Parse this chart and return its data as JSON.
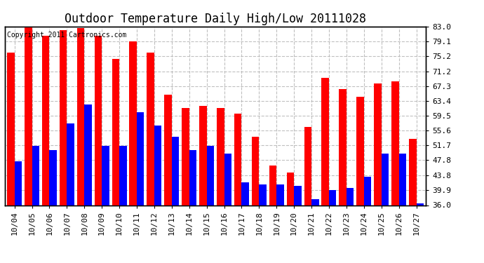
{
  "title": "Outdoor Temperature Daily High/Low 20111028",
  "copyright": "Copyright 2011 Cartronics.com",
  "dates": [
    "10/04",
    "10/05",
    "10/06",
    "10/07",
    "10/08",
    "10/09",
    "10/10",
    "10/11",
    "10/12",
    "10/13",
    "10/14",
    "10/15",
    "10/16",
    "10/17",
    "10/18",
    "10/19",
    "10/20",
    "10/21",
    "10/22",
    "10/23",
    "10/24",
    "10/25",
    "10/26",
    "10/27"
  ],
  "highs": [
    76.0,
    83.0,
    80.5,
    82.0,
    82.5,
    80.5,
    74.5,
    79.0,
    76.0,
    65.0,
    61.5,
    62.0,
    61.5,
    60.0,
    54.0,
    46.5,
    44.5,
    56.5,
    69.5,
    66.5,
    64.5,
    68.0,
    68.5,
    53.5
  ],
  "lows": [
    47.5,
    51.5,
    50.5,
    57.5,
    62.5,
    51.5,
    51.5,
    60.5,
    57.0,
    54.0,
    50.5,
    51.5,
    49.5,
    42.0,
    41.5,
    41.5,
    41.0,
    37.5,
    40.0,
    40.5,
    43.5,
    49.5,
    49.5,
    36.5
  ],
  "ylim": [
    36.0,
    83.0
  ],
  "yticks": [
    36.0,
    39.9,
    43.8,
    47.8,
    51.7,
    55.6,
    59.5,
    63.4,
    67.3,
    71.2,
    75.2,
    79.1,
    83.0
  ],
  "ytick_labels": [
    "36.0",
    "39.9",
    "43.8",
    "47.8",
    "51.7",
    "55.6",
    "59.5",
    "63.4",
    "67.3",
    "71.2",
    "75.2",
    "79.1",
    "83.0"
  ],
  "high_color": "#ff0000",
  "low_color": "#0000ff",
  "background_color": "#ffffff",
  "grid_color": "#c0c0c0",
  "bar_width": 0.42,
  "title_fontsize": 12,
  "copyright_fontsize": 7,
  "tick_fontsize": 8
}
